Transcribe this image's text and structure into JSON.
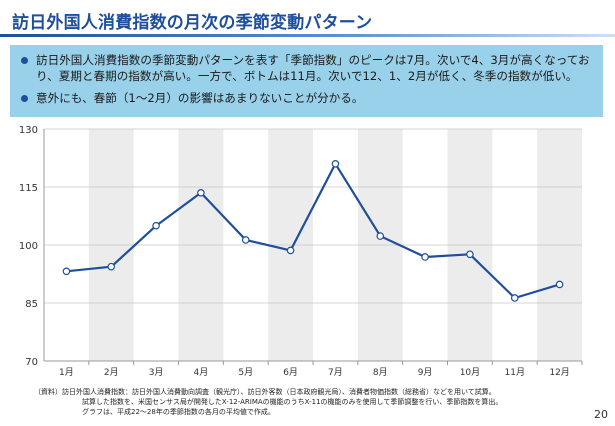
{
  "slide": {
    "title": "訪日外国人消費指数の月次の季節変動パターン",
    "bullets": [
      "訪日外国人消費指数の季節変動パターンを表す「季節指数」のピークは7月。次いで4、3月が高くなっており、夏期と春期の指数が高い。一方で、ボトムは11月。次いで12、1、2月が低く、冬季の指数が低い。",
      "意外にも、春節（1～2月）の影響はあまりないことが分かる。"
    ],
    "notes": [
      "（資料）訪日外国人消費指数：訪日外国人消費動向調査（観光庁）、訪日外客数（日本政府観光局）、消費者物価指数（総務省）などを用いて試算。",
      "試算した指数を、米国センサス局が開発したX-12-ARIMAの機能のうちX-11の機能のみを使用して季節調整を行い、季節指数を算出。",
      "グラフは、平成22～28年の季節指数の各月の平均値で作成。"
    ],
    "page_number": "20"
  },
  "chart_data": {
    "type": "line",
    "categories": [
      "1月",
      "2月",
      "3月",
      "4月",
      "5月",
      "6月",
      "7月",
      "8月",
      "9月",
      "10月",
      "11月",
      "12月"
    ],
    "series": [
      {
        "values": [
          93.2,
          94.4,
          105.0,
          113.5,
          101.3,
          98.6,
          121.0,
          102.3,
          96.9,
          97.6,
          86.3,
          89.8
        ]
      }
    ],
    "ylim": [
      70,
      130
    ],
    "yticks": [
      "70",
      "85",
      "100",
      "115",
      "130"
    ],
    "grid": true,
    "alternating_bands": true,
    "colors": {
      "line": "#1f4e9c",
      "marker_fill": "#ffffff",
      "band": "#ececec",
      "grid": "#c8c8c8"
    }
  }
}
